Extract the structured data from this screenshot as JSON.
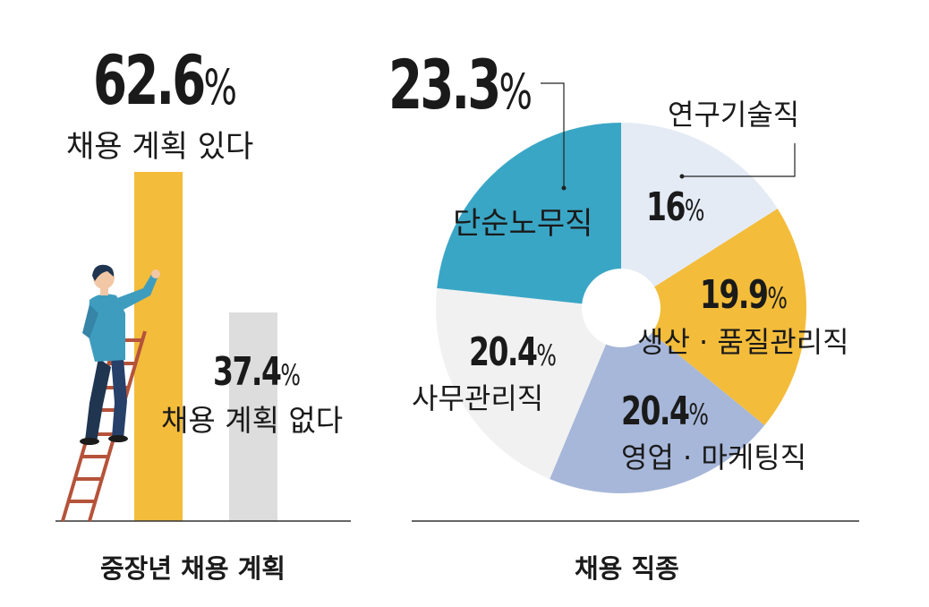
{
  "colors": {
    "yellow": "#F3BC3A",
    "teal": "#3AA6C6",
    "light_blue": "#E4EBF5",
    "periwinkle": "#A7B7D9",
    "off_white": "#F1F1F1",
    "gray": "#DDDDDD"
  },
  "chart_data": [
    {
      "type": "bar",
      "title": "중장년 채용 계획",
      "categories": [
        "채용 계획 있다",
        "채용 계획 없다"
      ],
      "values": [
        62.6,
        37.4
      ],
      "value_labels": [
        "62.6",
        "37.4"
      ],
      "unit": "%",
      "colors": [
        "#F3BC3A",
        "#DDDDDD"
      ],
      "ylim": [
        0,
        100
      ],
      "grid": false,
      "legend": "none"
    },
    {
      "type": "pie",
      "title": "채용 직종",
      "donut": true,
      "unit": "%",
      "slices": [
        {
          "label": "연구기술직",
          "value": 16,
          "value_label": "16",
          "color": "#E4EBF5"
        },
        {
          "label": "생산 · 품질관리직",
          "value": 19.9,
          "value_label": "19.9",
          "color": "#F3BC3A"
        },
        {
          "label": "영업 · 마케팅직",
          "value": 20.4,
          "value_label": "20.4",
          "color": "#A7B7D9"
        },
        {
          "label": "사무관리직",
          "value": 20.4,
          "value_label": "20.4",
          "color": "#F1F1F1"
        },
        {
          "label": "단순노무직",
          "value": 23.3,
          "value_label": "23.3",
          "color": "#3AA6C6"
        }
      ],
      "legend": "none"
    }
  ]
}
